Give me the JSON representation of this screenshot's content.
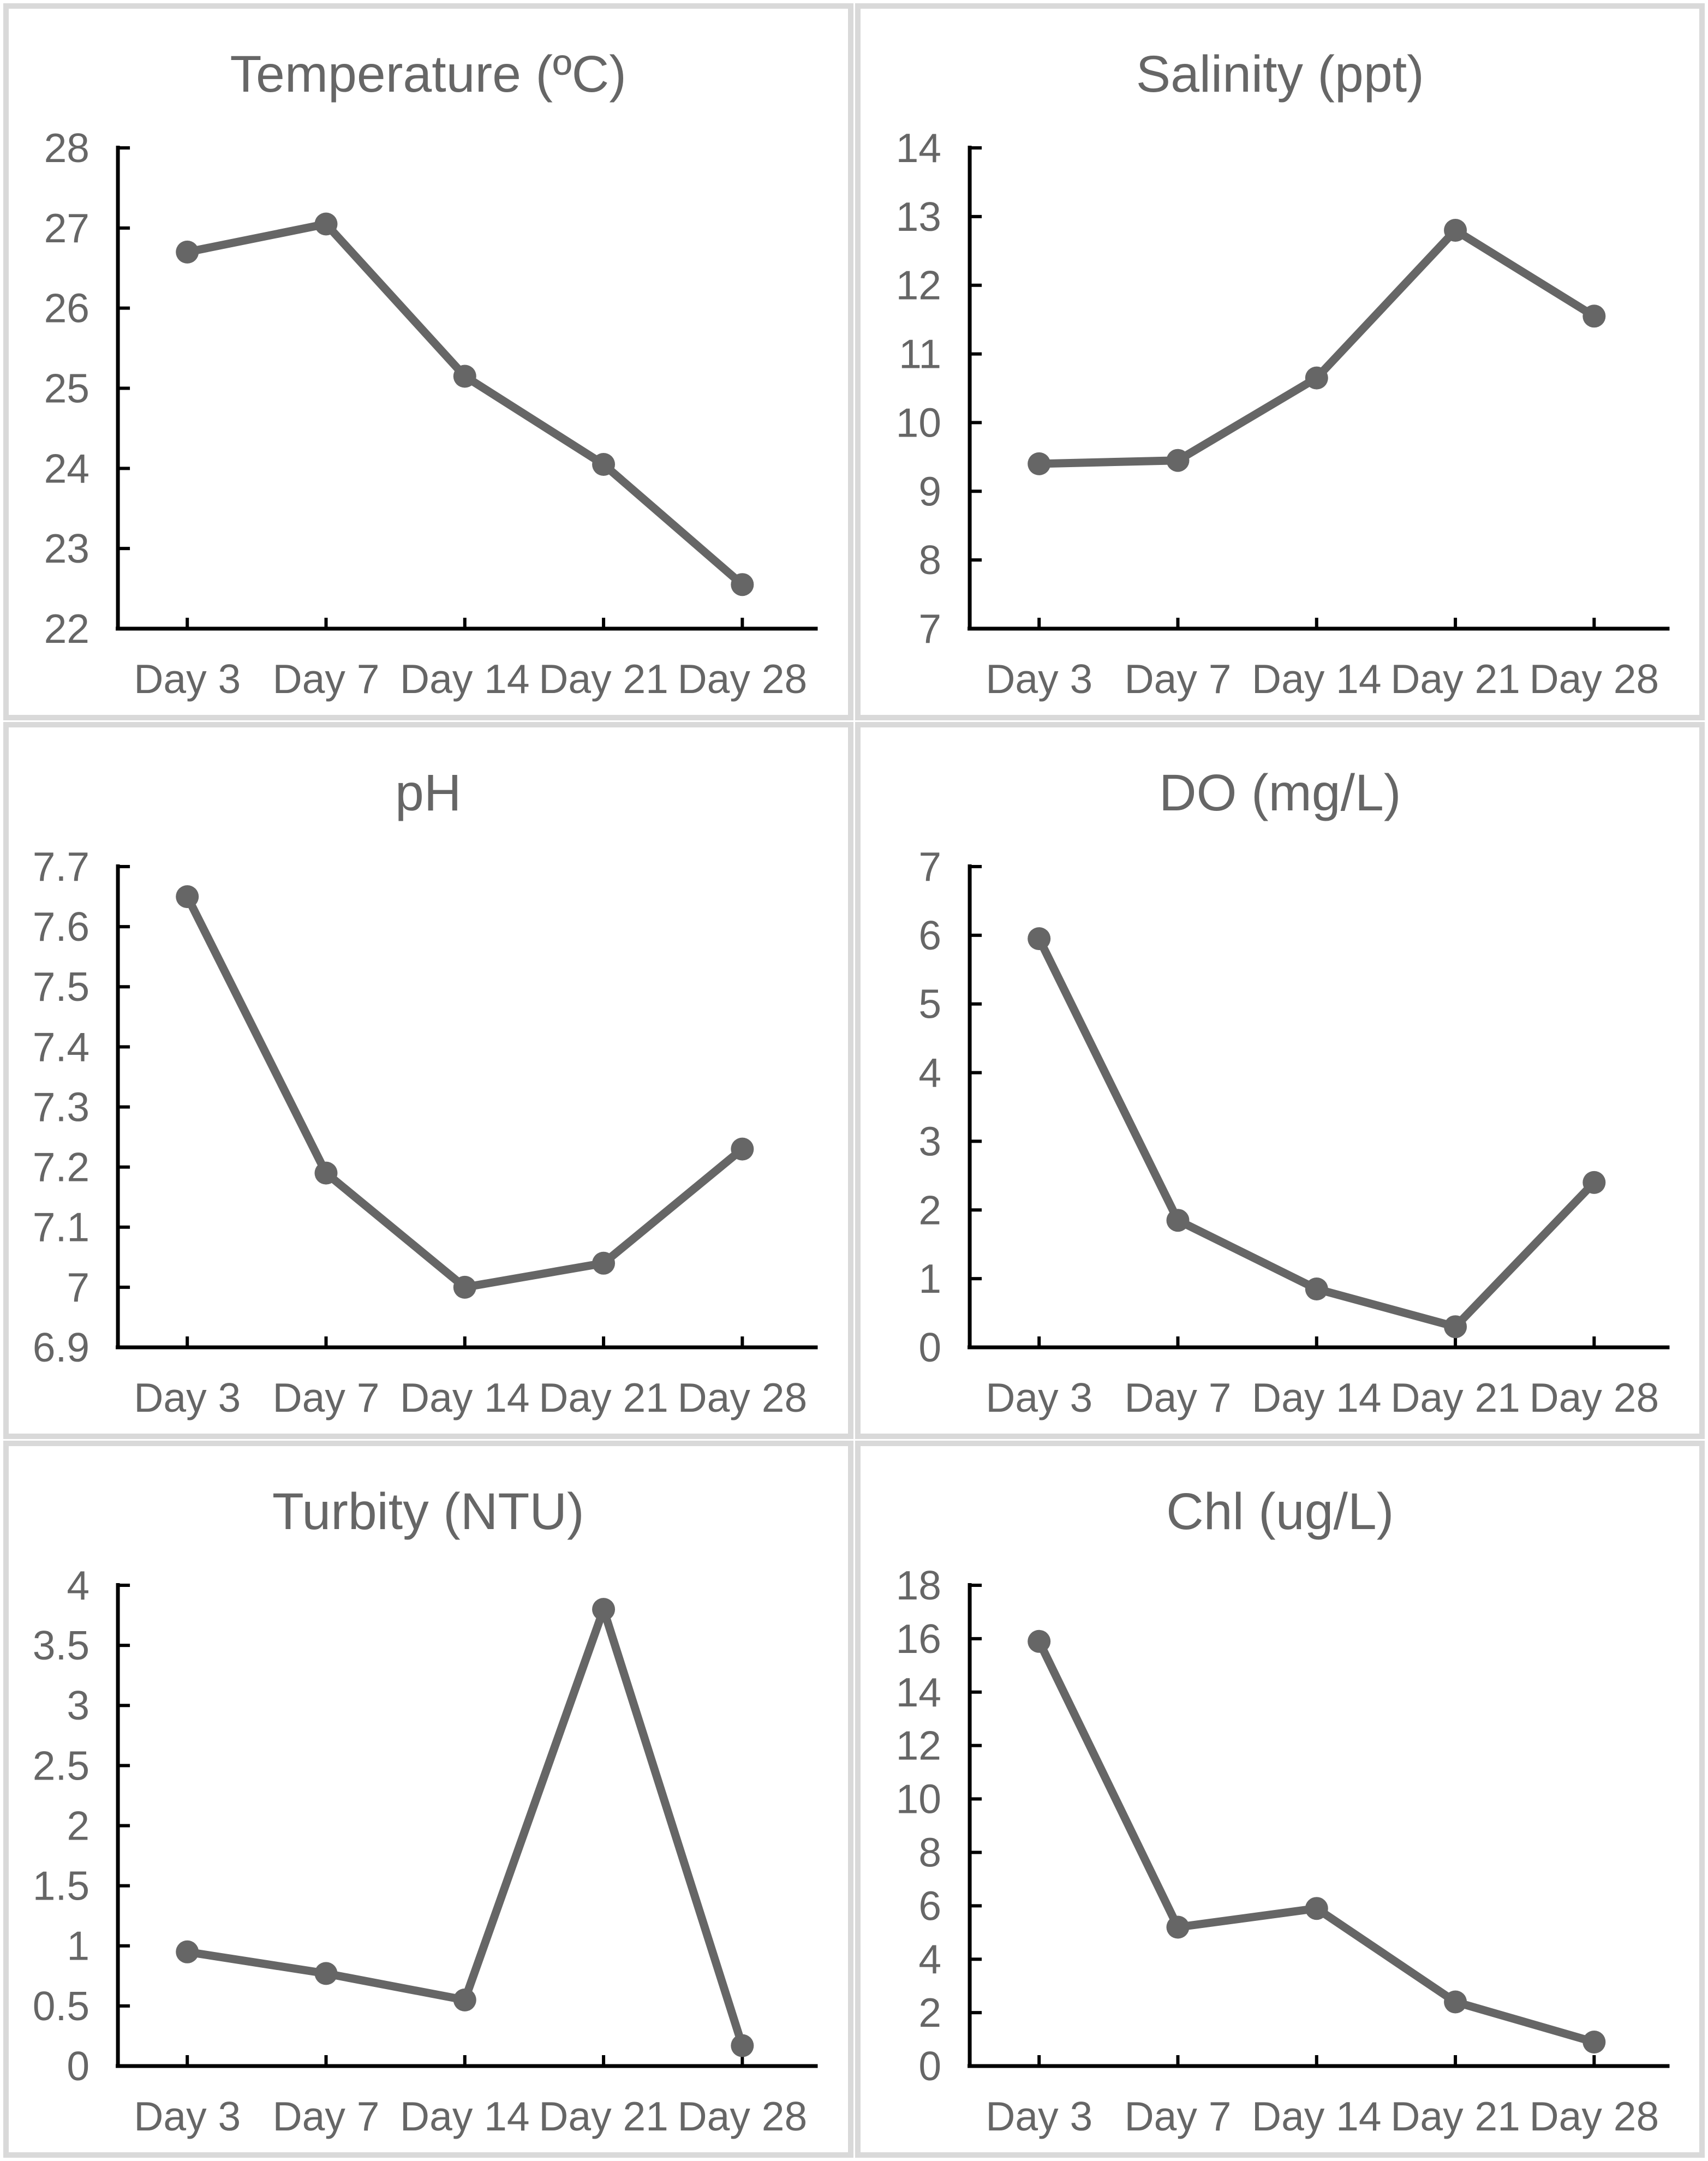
{
  "layout": {
    "columns": 2,
    "rows": 3
  },
  "colors": {
    "panel_background": "#ffffff",
    "panel_border": "#d9d9d9",
    "axis": "#000000",
    "series_line": "#666666",
    "marker": "#666666",
    "text": "#666666"
  },
  "chart_data": [
    {
      "type": "line",
      "title": "Temperature (ºC)",
      "categories": [
        "Day 3",
        "Day 7",
        "Day 14",
        "Day 21",
        "Day 28"
      ],
      "values": [
        26.7,
        27.05,
        25.15,
        24.05,
        22.55
      ],
      "ylim": [
        22,
        28
      ],
      "y_tick_labels": [
        "28",
        "27",
        "26",
        "25",
        "24",
        "23",
        "22"
      ],
      "xlabel": "",
      "ylabel": "",
      "grid": false,
      "legend": "none",
      "marker": "circle"
    },
    {
      "type": "line",
      "title": "Salinity (ppt)",
      "categories": [
        "Day 3",
        "Day 7",
        "Day 14",
        "Day 21",
        "Day 28"
      ],
      "values": [
        9.4,
        9.45,
        10.65,
        12.8,
        11.55
      ],
      "ylim": [
        7,
        14
      ],
      "y_tick_labels": [
        "14",
        "13",
        "12",
        "11",
        "10",
        "9",
        "8",
        "7"
      ],
      "xlabel": "",
      "ylabel": "",
      "grid": false,
      "legend": "none",
      "marker": "circle"
    },
    {
      "type": "line",
      "title": "pH",
      "categories": [
        "Day 3",
        "Day 7",
        "Day 14",
        "Day 21",
        "Day 28"
      ],
      "values": [
        7.65,
        7.19,
        7.0,
        7.04,
        7.23
      ],
      "ylim": [
        6.9,
        7.7
      ],
      "y_tick_labels": [
        "7.7",
        "7.6",
        "7.5",
        "7.4",
        "7.3",
        "7.2",
        "7.1",
        "7",
        "6.9"
      ],
      "xlabel": "",
      "ylabel": "",
      "grid": false,
      "legend": "none",
      "marker": "circle"
    },
    {
      "type": "line",
      "title": "DO (mg/L)",
      "categories": [
        "Day 3",
        "Day 7",
        "Day 14",
        "Day 21",
        "Day 28"
      ],
      "values": [
        5.95,
        1.85,
        0.85,
        0.3,
        2.4
      ],
      "ylim": [
        0,
        7
      ],
      "y_tick_labels": [
        "7",
        "6",
        "5",
        "4",
        "3",
        "2",
        "1",
        "0"
      ],
      "xlabel": "",
      "ylabel": "",
      "grid": false,
      "legend": "none",
      "marker": "circle"
    },
    {
      "type": "line",
      "title": "Turbity (NTU)",
      "categories": [
        "Day 3",
        "Day 7",
        "Day 14",
        "Day 21",
        "Day 28"
      ],
      "values": [
        0.95,
        0.77,
        0.55,
        3.8,
        0.17
      ],
      "ylim": [
        0,
        4
      ],
      "y_tick_labels": [
        "4",
        "3.5",
        "3",
        "2.5",
        "2",
        "1.5",
        "1",
        "0.5",
        "0"
      ],
      "xlabel": "",
      "ylabel": "",
      "grid": false,
      "legend": "none",
      "marker": "circle"
    },
    {
      "type": "line",
      "title": "Chl (ug/L)",
      "categories": [
        "Day 3",
        "Day 7",
        "Day 14",
        "Day 21",
        "Day 28"
      ],
      "values": [
        15.9,
        5.2,
        5.9,
        2.4,
        0.9
      ],
      "ylim": [
        0,
        18
      ],
      "y_tick_labels": [
        "18",
        "16",
        "14",
        "12",
        "10",
        "8",
        "6",
        "4",
        "2",
        "0"
      ],
      "xlabel": "",
      "ylabel": "",
      "grid": false,
      "legend": "none",
      "marker": "circle"
    }
  ]
}
